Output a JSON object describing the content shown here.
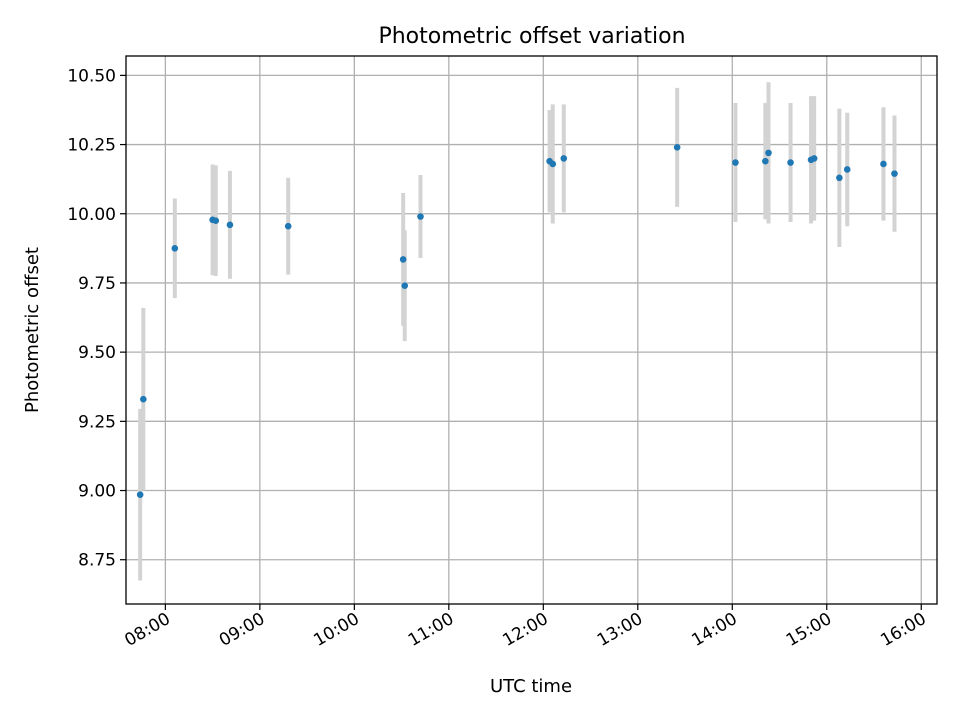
{
  "chart_data": {
    "type": "scatter",
    "title": "Photometric offset variation",
    "xlabel": "UTC time",
    "ylabel": "Photometric offset",
    "x_unit": "UTC hour",
    "xlim": [
      "07:35",
      "16:10"
    ],
    "ylim": [
      8.59,
      10.57
    ],
    "x_ticks": [
      "08:00",
      "09:00",
      "10:00",
      "11:00",
      "12:00",
      "13:00",
      "14:00",
      "15:00",
      "16:00"
    ],
    "y_ticks": [
      "8.75",
      "9.00",
      "9.25",
      "9.50",
      "9.75",
      "10.00",
      "10.25",
      "10.50"
    ],
    "grid": true,
    "marker_color": "#1f77b4",
    "errorbar_color": "#d3d3d3",
    "points": [
      {
        "t": "07:44",
        "y": 8.985,
        "err": 0.31
      },
      {
        "t": "07:46",
        "y": 9.33,
        "err": 0.33
      },
      {
        "t": "08:06",
        "y": 9.875,
        "err": 0.18
      },
      {
        "t": "08:30",
        "y": 9.978,
        "err": 0.2
      },
      {
        "t": "08:32",
        "y": 9.975,
        "err": 0.2
      },
      {
        "t": "08:41",
        "y": 9.96,
        "err": 0.195
      },
      {
        "t": "09:18",
        "y": 9.955,
        "err": 0.175
      },
      {
        "t": "10:31",
        "y": 9.835,
        "err": 0.24
      },
      {
        "t": "10:32",
        "y": 9.74,
        "err": 0.2
      },
      {
        "t": "10:42",
        "y": 9.99,
        "err": 0.15
      },
      {
        "t": "12:04",
        "y": 10.19,
        "err": 0.185
      },
      {
        "t": "12:06",
        "y": 10.18,
        "err": 0.215
      },
      {
        "t": "12:13",
        "y": 10.2,
        "err": 0.195
      },
      {
        "t": "13:25",
        "y": 10.24,
        "err": 0.215
      },
      {
        "t": "14:02",
        "y": 10.185,
        "err": 0.215
      },
      {
        "t": "14:21",
        "y": 10.19,
        "err": 0.21
      },
      {
        "t": "14:23",
        "y": 10.22,
        "err": 0.255
      },
      {
        "t": "14:37",
        "y": 10.185,
        "err": 0.215
      },
      {
        "t": "14:50",
        "y": 10.195,
        "err": 0.23
      },
      {
        "t": "14:52",
        "y": 10.2,
        "err": 0.225
      },
      {
        "t": "15:08",
        "y": 10.13,
        "err": 0.25
      },
      {
        "t": "15:13",
        "y": 10.16,
        "err": 0.205
      },
      {
        "t": "15:36",
        "y": 10.18,
        "err": 0.205
      },
      {
        "t": "15:43",
        "y": 10.145,
        "err": 0.21
      }
    ]
  }
}
